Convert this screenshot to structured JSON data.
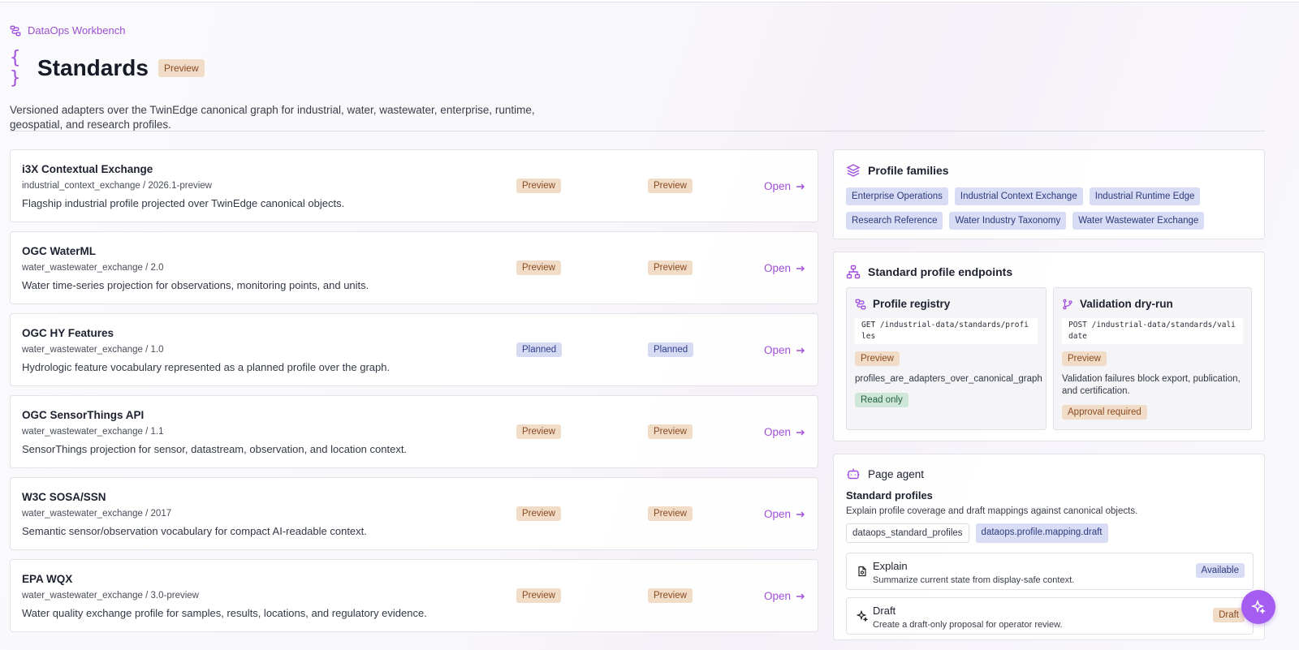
{
  "breadcrumb": "DataOps Workbench",
  "page": {
    "title": "Standards",
    "title_badge": "Preview",
    "description": "Versioned adapters over the TwinEdge canonical graph for industrial, water, wastewater, enterprise, runtime, geospatial, and research profiles."
  },
  "standards": [
    {
      "name": "i3X Contextual Exchange",
      "version": "industrial_context_exchange / 2026.1-preview",
      "desc": "Flagship industrial profile projected over TwinEdge canonical objects.",
      "status1": "Preview",
      "status2": "Preview",
      "open": "Open"
    },
    {
      "name": "OGC WaterML",
      "version": "water_wastewater_exchange / 2.0",
      "desc": "Water time-series projection for observations, monitoring points, and units.",
      "status1": "Preview",
      "status2": "Preview",
      "open": "Open"
    },
    {
      "name": "OGC HY Features",
      "version": "water_wastewater_exchange / 1.0",
      "desc": "Hydrologic feature vocabulary represented as a planned profile over the graph.",
      "status1": "Planned",
      "status2": "Planned",
      "open": "Open"
    },
    {
      "name": "OGC SensorThings API",
      "version": "water_wastewater_exchange / 1.1",
      "desc": "SensorThings projection for sensor, datastream, observation, and location context.",
      "status1": "Preview",
      "status2": "Preview",
      "open": "Open"
    },
    {
      "name": "W3C SOSA/SSN",
      "version": "water_wastewater_exchange / 2017",
      "desc": "Semantic sensor/observation vocabulary for compact AI-readable context.",
      "status1": "Preview",
      "status2": "Preview",
      "open": "Open"
    },
    {
      "name": "EPA WQX",
      "version": "water_wastewater_exchange / 3.0-preview",
      "desc": "Water quality exchange profile for samples, results, locations, and regulatory evidence.",
      "status1": "Preview",
      "status2": "Preview",
      "open": "Open"
    }
  ],
  "families": {
    "title": "Profile families",
    "items": [
      "Enterprise Operations",
      "Industrial Context Exchange",
      "Industrial Runtime Edge",
      "Research Reference",
      "Water Industry Taxonomy",
      "Water Wastewater Exchange"
    ]
  },
  "endpoints": {
    "title": "Standard profile endpoints",
    "registry": {
      "title": "Profile registry",
      "code": "GET /industrial-data/standards/profiles",
      "badge": "Preview",
      "text": "profiles_are_adapters_over_canonical_graph",
      "badge2": "Read only"
    },
    "validation": {
      "title": "Validation dry-run",
      "code": "POST /industrial-data/standards/validate",
      "badge": "Preview",
      "text": "Validation failures block export, publication, and certification.",
      "badge2": "Approval required"
    }
  },
  "agent": {
    "title": "Page agent",
    "subtitle": "Standard profiles",
    "desc": "Explain profile coverage and draft mappings against canonical objects.",
    "tag1": "dataops_standard_profiles",
    "tag2": "dataops.profile.mapping.draft",
    "actions": [
      {
        "title": "Explain",
        "desc": "Summarize current state from display-safe context.",
        "badge": "Available"
      },
      {
        "title": "Draft",
        "desc": "Create a draft-only proposal for operator review.",
        "badge": "Draft"
      }
    ]
  },
  "colors": {
    "accent": "#a04fd8",
    "preview_bg": "#f1dcc7",
    "planned_bg": "#d6daf3",
    "readonly_bg": "#cfe7d8"
  },
  "icons": {
    "breadcrumb": "workflow-icon",
    "title": "braces-icon",
    "families": "layers-icon",
    "endpoints": "network-icon",
    "registry": "workflow-icon",
    "validation": "git-branch-icon",
    "agent": "bot-icon",
    "explain": "file-icon",
    "draft": "sparkles-icon",
    "fab": "sparkles-icon"
  }
}
